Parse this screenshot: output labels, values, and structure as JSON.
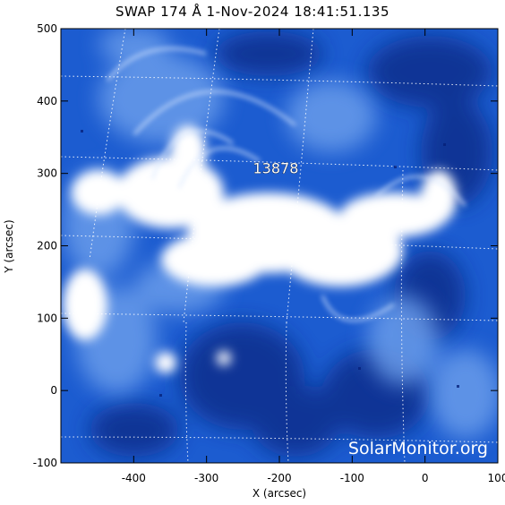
{
  "title": "SWAP 174 Å  1-Nov-2024 18:41:51.135",
  "x_axis": {
    "label": "X (arcsec)",
    "range": [
      -500,
      100
    ],
    "ticks": [
      "-400",
      "-300",
      "-200",
      "-100",
      "0",
      "100"
    ],
    "tick_values": [
      -400,
      -300,
      -200,
      -100,
      0,
      100
    ]
  },
  "y_axis": {
    "label": "Y (arcsec)",
    "range": [
      -100,
      500
    ],
    "ticks": [
      "500",
      "400",
      "300",
      "200",
      "100",
      "0",
      "-100"
    ],
    "tick_values": [
      500,
      400,
      300,
      200,
      100,
      0,
      -100
    ]
  },
  "region": {
    "label": "13878",
    "x": -205,
    "y": 300
  },
  "watermark": "SolarMonitor.org",
  "colors": {
    "deep_blue": "#0a2f8a",
    "mid_blue": "#1f5fd0",
    "light_blue": "#79aaee",
    "bright": "#ffffff",
    "grid": "#ffffff"
  }
}
